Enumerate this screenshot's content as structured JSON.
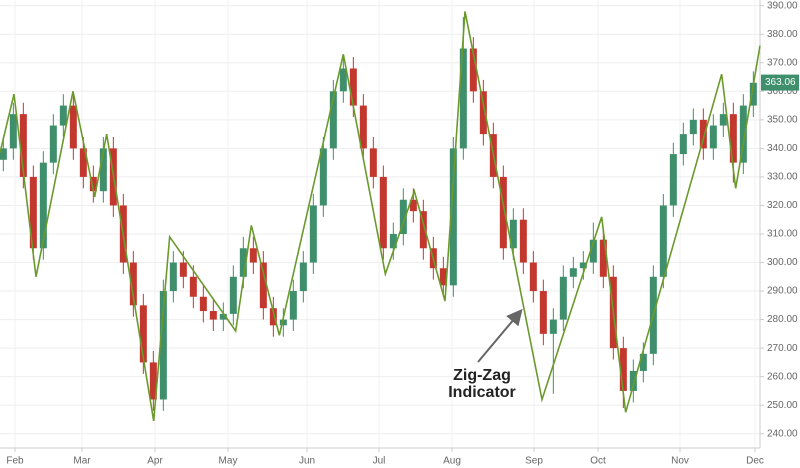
{
  "chart_data": {
    "type": "candlestick",
    "x": [
      -3,
      0,
      3,
      6,
      9,
      12,
      15,
      18,
      21,
      24,
      27,
      30,
      33,
      36,
      39,
      42,
      45,
      48,
      51,
      54,
      57,
      60,
      63,
      66,
      69,
      72,
      75,
      78,
      81,
      84,
      87,
      90,
      93,
      96,
      99,
      102,
      105,
      108,
      111,
      114,
      117,
      120,
      123,
      126,
      129,
      132,
      135,
      138,
      141,
      144,
      147,
      150,
      153,
      156,
      159,
      162,
      165,
      168,
      171,
      174,
      177,
      180,
      183,
      186,
      189,
      192,
      195,
      198,
      201,
      204,
      207,
      210,
      213,
      216,
      219,
      222
    ],
    "open": [
      336,
      340,
      352,
      330,
      305,
      335,
      348,
      355,
      340,
      330,
      325,
      340,
      320,
      300,
      285,
      265,
      252,
      290,
      300,
      295,
      288,
      283,
      280,
      282,
      295,
      305,
      300,
      284,
      278,
      280,
      290,
      300,
      320,
      340,
      360,
      368,
      355,
      340,
      330,
      305,
      310,
      322,
      318,
      305,
      298,
      292,
      340,
      375,
      360,
      345,
      330,
      305,
      315,
      300,
      290,
      275,
      280,
      295,
      298,
      300,
      308,
      295,
      270,
      255,
      262,
      268,
      295,
      320,
      338,
      345,
      350,
      340,
      348,
      352,
      335,
      355
    ],
    "high": [
      344,
      356,
      356,
      334,
      339,
      352,
      359,
      359,
      344,
      334,
      344,
      344,
      324,
      304,
      289,
      269,
      294,
      304,
      304,
      299,
      292,
      287,
      286,
      299,
      309,
      309,
      304,
      288,
      284,
      294,
      304,
      324,
      344,
      364,
      372,
      372,
      359,
      344,
      334,
      314,
      326,
      326,
      322,
      309,
      302,
      344,
      386,
      379,
      364,
      349,
      334,
      319,
      319,
      304,
      294,
      284,
      299,
      302,
      304,
      314,
      312,
      299,
      274,
      266,
      272,
      299,
      324,
      342,
      349,
      354,
      354,
      352,
      356,
      356,
      359,
      367
    ],
    "low": [
      332,
      336,
      326,
      301,
      301,
      331,
      344,
      336,
      326,
      321,
      321,
      316,
      296,
      281,
      261,
      248,
      248,
      286,
      291,
      284,
      279,
      276,
      276,
      278,
      291,
      296,
      280,
      274,
      274,
      276,
      286,
      296,
      316,
      336,
      356,
      351,
      336,
      326,
      301,
      301,
      306,
      314,
      301,
      294,
      288,
      288,
      336,
      356,
      341,
      326,
      301,
      301,
      296,
      286,
      271,
      254,
      276,
      291,
      294,
      296,
      291,
      266,
      249,
      251,
      258,
      264,
      291,
      316,
      334,
      341,
      336,
      336,
      344,
      328,
      331,
      351
    ],
    "close": [
      340,
      352,
      330,
      305,
      335,
      348,
      355,
      340,
      330,
      325,
      340,
      320,
      300,
      285,
      265,
      252,
      290,
      300,
      295,
      288,
      283,
      280,
      282,
      295,
      305,
      300,
      284,
      278,
      280,
      290,
      300,
      320,
      340,
      360,
      368,
      355,
      340,
      330,
      305,
      310,
      322,
      318,
      305,
      298,
      292,
      340,
      375,
      360,
      345,
      330,
      305,
      315,
      300,
      290,
      275,
      280,
      295,
      298,
      300,
      308,
      295,
      270,
      255,
      262,
      268,
      295,
      320,
      338,
      345,
      350,
      340,
      348,
      352,
      335,
      355,
      363
    ],
    "up_color": "#3f8f6c",
    "down_color": "#c2382e",
    "zigzag": {
      "color": "#6b9a2c",
      "x": [
        -4,
        0.2,
        6.8,
        17.9,
        24.4,
        28,
        42.1,
        46.9,
        66.7,
        71.4,
        79.8,
        99,
        111.6,
        120.3,
        129.5,
        135.5,
        158.6,
        176.5,
        183.7,
        212.5,
        216.7,
        224
      ],
      "values": [
        338.5,
        359,
        295,
        360,
        323,
        345,
        244.5,
        309,
        276,
        313,
        274.5,
        373,
        296,
        325,
        286.5,
        388,
        252,
        316,
        247.5,
        366,
        326,
        376
      ]
    },
    "annotation": [
      "Zig-Zag",
      "Indicator"
    ],
    "last_price": 363.06,
    "xlim": [
      -4,
      224
    ],
    "ylim": [
      235,
      392
    ],
    "xticks": [
      {
        "value": 0.5,
        "label": "Feb"
      },
      {
        "value": 20.6,
        "label": "Mar"
      },
      {
        "value": 42.5,
        "label": "Apr"
      },
      {
        "value": 64.4,
        "label": "May"
      },
      {
        "value": 88.1,
        "label": "Jun"
      },
      {
        "value": 109.7,
        "label": "Jul"
      },
      {
        "value": 131.6,
        "label": "Aug"
      },
      {
        "value": 156.2,
        "label": "Sep"
      },
      {
        "value": 175.4,
        "label": "Oct"
      },
      {
        "value": 200,
        "label": "Nov"
      },
      {
        "value": 222.5,
        "label": "Dec"
      }
    ],
    "yticks": [
      {
        "value": 240,
        "label": "240.00"
      },
      {
        "value": 250,
        "label": "250.00"
      },
      {
        "value": 260,
        "label": "260.00"
      },
      {
        "value": 270,
        "label": "270.00"
      },
      {
        "value": 280,
        "label": "280.00"
      },
      {
        "value": 290,
        "label": "290.00"
      },
      {
        "value": 300,
        "label": "300.00"
      },
      {
        "value": 310,
        "label": "310.00"
      },
      {
        "value": 320,
        "label": "320.00"
      },
      {
        "value": 330,
        "label": "330.00"
      },
      {
        "value": 340,
        "label": "340.00"
      },
      {
        "value": 350,
        "label": "350.00"
      },
      {
        "value": 360,
        "label": "360.00"
      },
      {
        "value": 370,
        "label": "370.00"
      },
      {
        "value": 380,
        "label": "380.00"
      },
      {
        "value": 390,
        "label": "390.00"
      }
    ],
    "grid": true
  }
}
